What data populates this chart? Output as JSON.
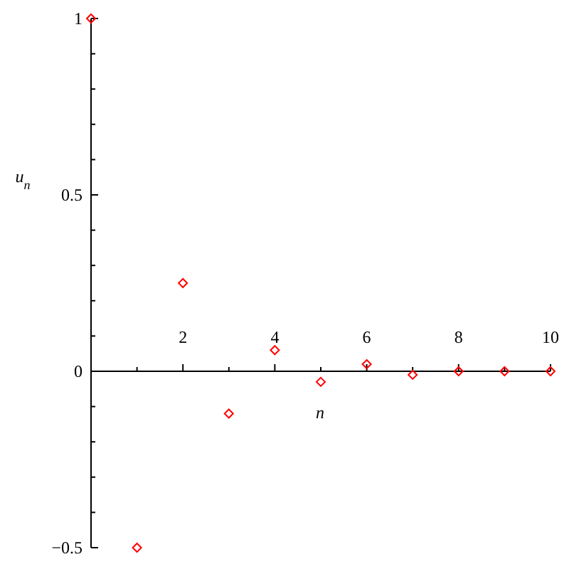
{
  "chart_data": {
    "type": "scatter",
    "xlabel": "n",
    "ylabel": "u$_{n}$",
    "x": [
      0,
      1,
      2,
      3,
      4,
      5,
      6,
      7,
      8,
      9,
      10
    ],
    "series": [
      {
        "color": "#ff0000",
        "values": [
          1,
          -0.5,
          0.25,
          -0.12,
          0.06,
          -0.03,
          0.02,
          -0.01,
          0,
          0,
          0
        ]
      }
    ],
    "xlim": [
      0,
      10
    ],
    "xticks": [
      {
        "value": 1,
        "label": null
      },
      2,
      {
        "value": 3,
        "label": null
      },
      4,
      {
        "value": 5,
        "label": null
      },
      6,
      {
        "value": 7,
        "label": null
      },
      8,
      {
        "value": 9,
        "label": null
      },
      10
    ],
    "ylim": [
      -0.5,
      1
    ],
    "yticks": [
      -0.5,
      {
        "value": -0.4,
        "label": null
      },
      {
        "value": -0.3,
        "label": null
      },
      {
        "value": -0.2,
        "label": null
      },
      {
        "value": -0.1,
        "label": null
      },
      0,
      {
        "value": 0.1,
        "label": null
      },
      {
        "value": 0.2,
        "label": null
      },
      {
        "value": 0.3,
        "label": null
      },
      {
        "value": 0.4,
        "label": null
      },
      0.5,
      {
        "value": 0.6,
        "label": null
      },
      {
        "value": 0.7,
        "label": null
      },
      {
        "value": 0.8,
        "label": null
      },
      {
        "value": 0.9,
        "label": null
      },
      1
    ],
    "marker": "diamond",
    "grid": false
  }
}
